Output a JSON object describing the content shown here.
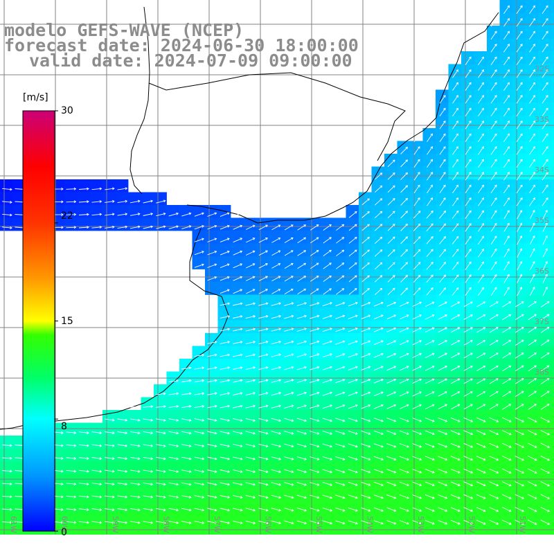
{
  "title": {
    "model": "modelo GEFS-WAVE (NCEP)",
    "forecast": "forecast date: 2024-06-30 18:00:00",
    "valid": "valid date: 2024-07-09 09:00:00"
  },
  "colorbar": {
    "unit": "[m/s]",
    "min": 0,
    "max": 30,
    "ticks": [
      {
        "value": 0,
        "label": "0"
      },
      {
        "value": 8,
        "label": "8"
      },
      {
        "value": 15,
        "label": "15"
      },
      {
        "value": 22,
        "label": "22"
      },
      {
        "value": 30,
        "label": "30"
      }
    ],
    "stops": [
      {
        "value": 0,
        "color": "#0000ff"
      },
      {
        "value": 4,
        "color": "#0099ff"
      },
      {
        "value": 8,
        "color": "#00ffff"
      },
      {
        "value": 11,
        "color": "#00ff66"
      },
      {
        "value": 14,
        "color": "#33ff00"
      },
      {
        "value": 15,
        "color": "#ffff00"
      },
      {
        "value": 18,
        "color": "#ff9900"
      },
      {
        "value": 22,
        "color": "#ff3300"
      },
      {
        "value": 26,
        "color": "#ff0000"
      },
      {
        "value": 30,
        "color": "#cc0077"
      }
    ]
  },
  "map": {
    "lon_range": [
      -61,
      -51
    ],
    "lat_range": [
      -38.8,
      -30.3
    ],
    "lat_labels": [
      "32S",
      "33S",
      "34S",
      "35S",
      "36S",
      "37S",
      "38S"
    ],
    "lon_labels": [
      "61W",
      "60W",
      "59W",
      "58W",
      "57W",
      "56W",
      "55W",
      "54W",
      "53W",
      "52W",
      "51W"
    ],
    "label_color": "#8c8c8c",
    "grid_color": "#808080",
    "land_color": "#ffffff",
    "coast_color": "#000000",
    "arrow_color": "#ffffff"
  }
}
